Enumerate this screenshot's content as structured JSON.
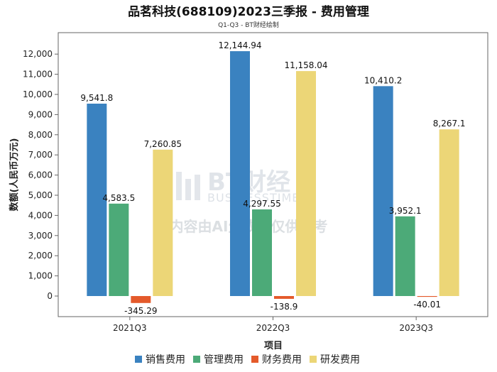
{
  "chart_data": {
    "type": "bar",
    "title": "品茗科技(688109)2023三季报 - 费用管理",
    "subtitle": "Q1-Q3 - BT财经绘制",
    "xlabel": "项目",
    "ylabel": "数额(人民币万元)",
    "ylim": [
      -1000,
      12500
    ],
    "yticks": [
      0,
      1000,
      2000,
      3000,
      4000,
      5000,
      6000,
      7000,
      8000,
      9000,
      10000,
      11000,
      12000
    ],
    "ytick_labels": [
      "0",
      "1,000",
      "2,000",
      "3,000",
      "4,000",
      "5,000",
      "6,000",
      "7,000",
      "8,000",
      "9,000",
      "10,000",
      "11,000",
      "12,000"
    ],
    "categories": [
      "2021Q3",
      "2022Q3",
      "2023Q3"
    ],
    "series": [
      {
        "name": "销售费用",
        "color": "#3a82c0",
        "values": [
          9541.8,
          12144.94,
          10410.2
        ],
        "labels": [
          "9,541.8",
          "12,144.94",
          "10,410.2"
        ]
      },
      {
        "name": "管理费用",
        "color": "#4caa78",
        "values": [
          4583.5,
          4297.55,
          3952.1
        ],
        "labels": [
          "4,583.5",
          "4,297.55",
          "3,952.1"
        ]
      },
      {
        "name": "财务费用",
        "color": "#e45a2b",
        "values": [
          -345.29,
          -138.9,
          -40.01
        ],
        "labels": [
          "-345.29",
          "-138.9",
          "-40.01"
        ]
      },
      {
        "name": "研发费用",
        "color": "#ecd677",
        "values": [
          7260.85,
          11158.04,
          8267.1
        ],
        "labels": [
          "7,260.85",
          "11,158.04",
          "8,267.1"
        ]
      }
    ],
    "legend_position": "bottom",
    "grid": false
  },
  "watermark": {
    "brand": "BT财经",
    "sub": "BUSINESSTIMES",
    "notice": "内容由AI生成，仅供参考"
  }
}
